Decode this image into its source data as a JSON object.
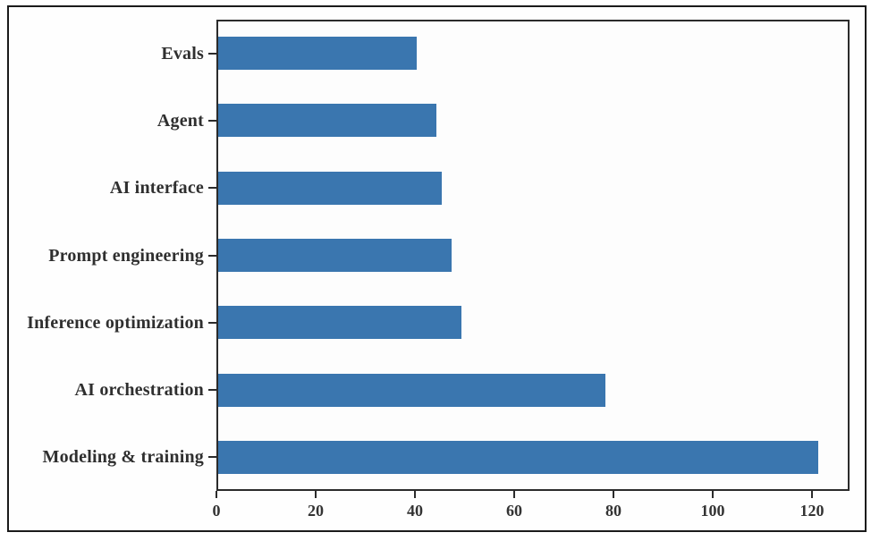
{
  "figure": {
    "background": "#ffffff",
    "frame_border_color": "#1b1b1b"
  },
  "chart_data": {
    "type": "bar",
    "orientation": "horizontal",
    "title": "",
    "xlabel": "",
    "ylabel": "",
    "categories": [
      "Evals",
      "Agent",
      "AI interface",
      "Prompt engineering",
      "Inference optimization",
      "AI orchestration",
      "Modeling & training"
    ],
    "values": [
      40,
      44,
      45,
      47,
      49,
      78,
      121
    ],
    "x_ticks": [
      {
        "label": "0",
        "value": 0
      },
      {
        "label": "20",
        "value": 20
      },
      {
        "label": "40",
        "value": 40
      },
      {
        "label": "60",
        "value": 60
      },
      {
        "label": "80",
        "value": 80
      },
      {
        "label": "100",
        "value": 100
      },
      {
        "label": "120",
        "value": 120
      }
    ],
    "xlim": [
      0,
      127.6
    ],
    "grid": false,
    "legend": "none",
    "bar_color": "#3a76af",
    "axis_color": "#2b2b2b",
    "label_color": "#2f2f2f",
    "tick_label_color": "#333333"
  }
}
